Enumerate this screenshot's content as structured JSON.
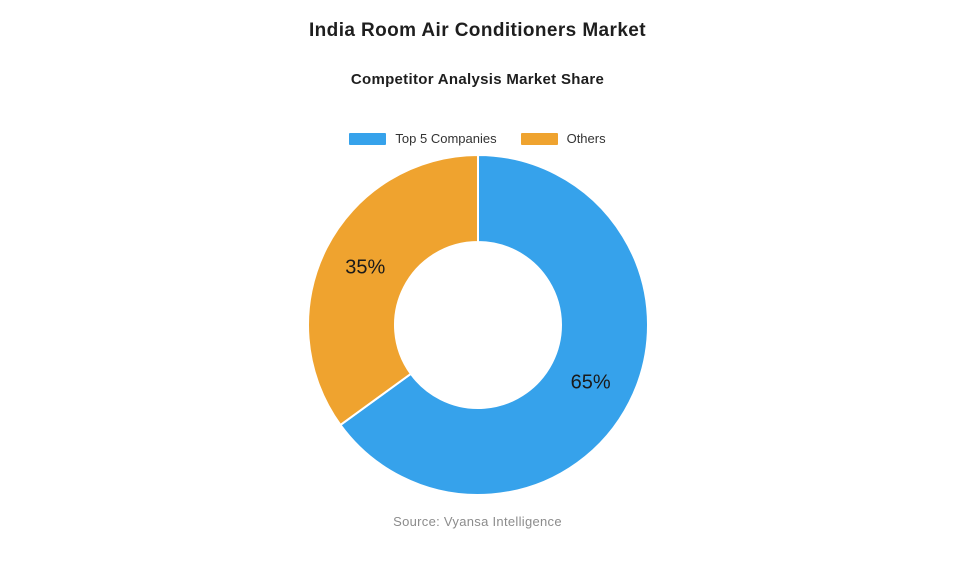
{
  "header": {
    "title": "India Room Air Conditioners Market",
    "subtitle": "Competitor Analysis Market Share"
  },
  "legend": {
    "items": [
      {
        "label": "Top 5 Companies",
        "color": "#36a2eb"
      },
      {
        "label": "Others",
        "color": "#efa32f"
      }
    ]
  },
  "chart_data": {
    "type": "pie",
    "subtype": "donut",
    "title": "Competitor Analysis Market Share",
    "categories": [
      "Top 5 Companies",
      "Others"
    ],
    "values": [
      65,
      35
    ],
    "data_labels": [
      "65%",
      "35%"
    ],
    "colors": [
      "#36a2eb",
      "#efa32f"
    ],
    "start_angle_deg": 0,
    "direction": "clockwise",
    "inner_radius_ratio": 0.49,
    "border_color": "#ffffff",
    "border_width": 2,
    "legend_position": "top",
    "label_color": "#1a1a1a"
  },
  "footer": {
    "source": "Source: Vyansa Intelligence"
  },
  "colors": {
    "background": "#ffffff",
    "title_text": "#1e1e1e",
    "legend_text": "#333333",
    "source_text": "#8c8c8c"
  }
}
